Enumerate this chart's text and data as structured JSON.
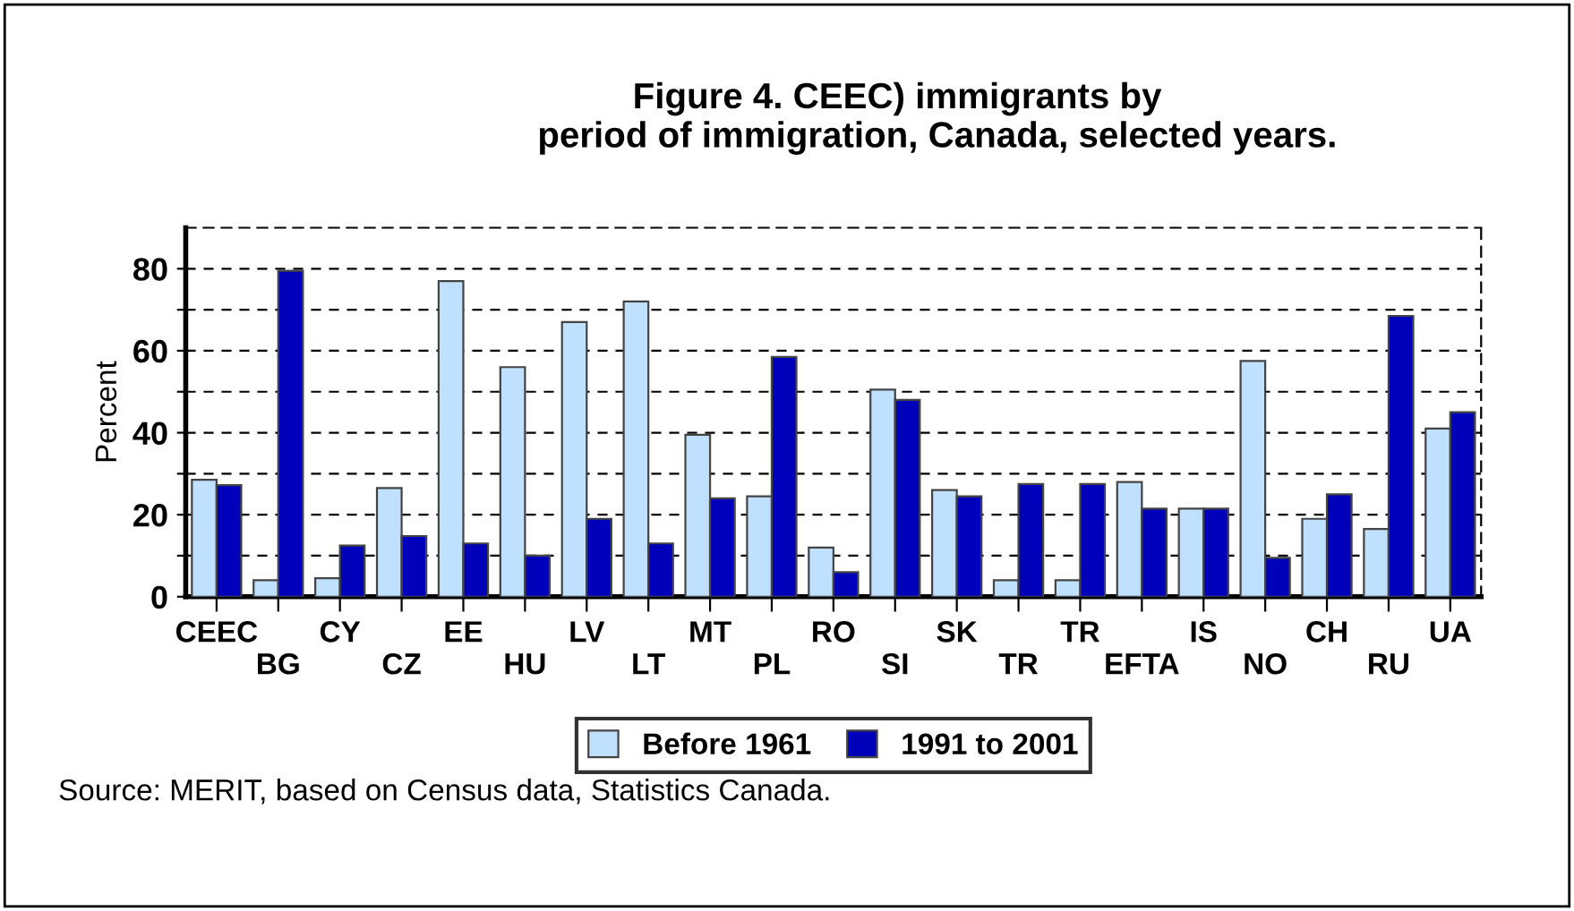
{
  "chart_data": {
    "type": "bar",
    "title": "Figure 4. CEEC) immigrants by\n        period of immigration, Canada, selected years.",
    "ylabel": "Percent",
    "categories": [
      "CEEC",
      "BG",
      "CY",
      "CZ",
      "EE",
      "HU",
      "LV",
      "LT",
      "MT",
      "PL",
      "RO",
      "SI",
      "SK",
      "TR",
      "TR",
      "EFTA",
      "IS",
      "NO",
      "CH",
      "RU",
      "UA"
    ],
    "series": [
      {
        "name": "Before 1961",
        "color": "#c0e0ff",
        "values": [
          28.5,
          4,
          4.5,
          26.5,
          77,
          56,
          67,
          72,
          39.5,
          24.5,
          12,
          50.5,
          26,
          4,
          4,
          28,
          21.5,
          57.5,
          19,
          16.5,
          41
        ]
      },
      {
        "name": "1991 to 2001",
        "color": "#0000bb",
        "values": [
          27.2,
          79.5,
          12.5,
          14.8,
          13,
          10,
          19,
          13,
          24,
          58.5,
          6,
          48,
          24.5,
          27.5,
          27.5,
          21.5,
          21.5,
          9.5,
          25,
          68.5,
          45
        ]
      }
    ],
    "ylim": [
      0,
      90
    ],
    "yticks": [
      0,
      {
        "value": 10,
        "label": null
      },
      20,
      {
        "value": 30,
        "label": null
      },
      40,
      {
        "value": 50,
        "label": null
      },
      60,
      {
        "value": 70,
        "label": null
      },
      80
    ],
    "grid": "y",
    "legend": "bottom",
    "annotations": [
      "Source: MERIT, based on Census data, Statistics Canada."
    ]
  }
}
